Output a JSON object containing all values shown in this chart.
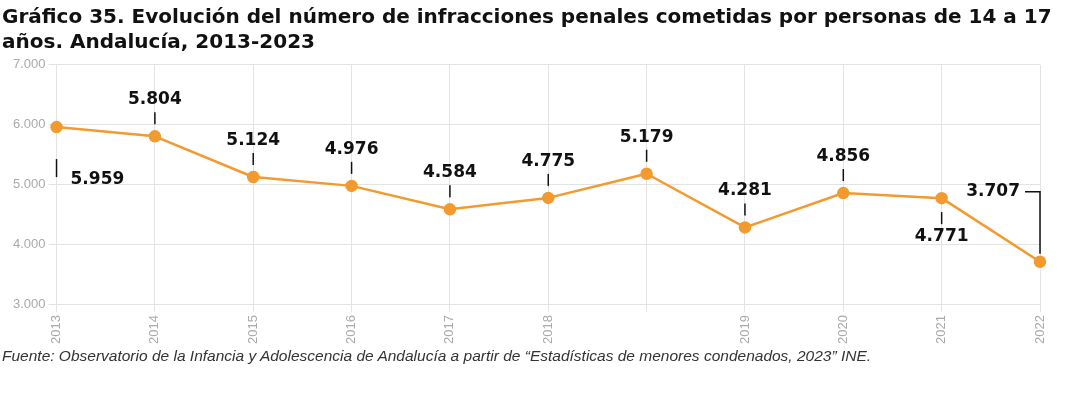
{
  "chart_data": {
    "type": "line",
    "title": "Gráfico 35. Evolución del número de infracciones penales cometidas por personas de 14 a 17 años. Andalucía, 2013-2023",
    "categories": [
      "2013",
      "2014",
      "2015",
      "2016",
      "2017",
      "2018",
      null,
      "2019",
      "2020",
      "2021",
      "2022"
    ],
    "series": [
      {
        "color": "#f39a2e",
        "values": [
          5959,
          5804,
          5124,
          4976,
          4584,
          4775,
          5179,
          4281,
          4856,
          4771,
          3707
        ],
        "value_labels": [
          "5.959",
          "5.804",
          "5.124",
          "4.976",
          "4.584",
          "4.775",
          "5.179",
          "4.281",
          "4.856",
          "4.771",
          "3.707"
        ]
      }
    ],
    "ylim": [
      3000,
      7000
    ],
    "yticks": [
      {
        "value": 3000,
        "label": "3.000"
      },
      {
        "value": 4000,
        "label": "4.000"
      },
      {
        "value": 5000,
        "label": "5.000"
      },
      {
        "value": 6000,
        "label": "6.000"
      },
      {
        "value": 7000,
        "label": "7.000"
      }
    ],
    "grid": true,
    "legend": false,
    "marker": "circle",
    "line_style": "solid",
    "annotations": [
      "Fuente: Observatorio de la Infancia y Adolescencia de Andalucía a partir de “Estadísticas de menores condenados, 2023” INE."
    ]
  }
}
